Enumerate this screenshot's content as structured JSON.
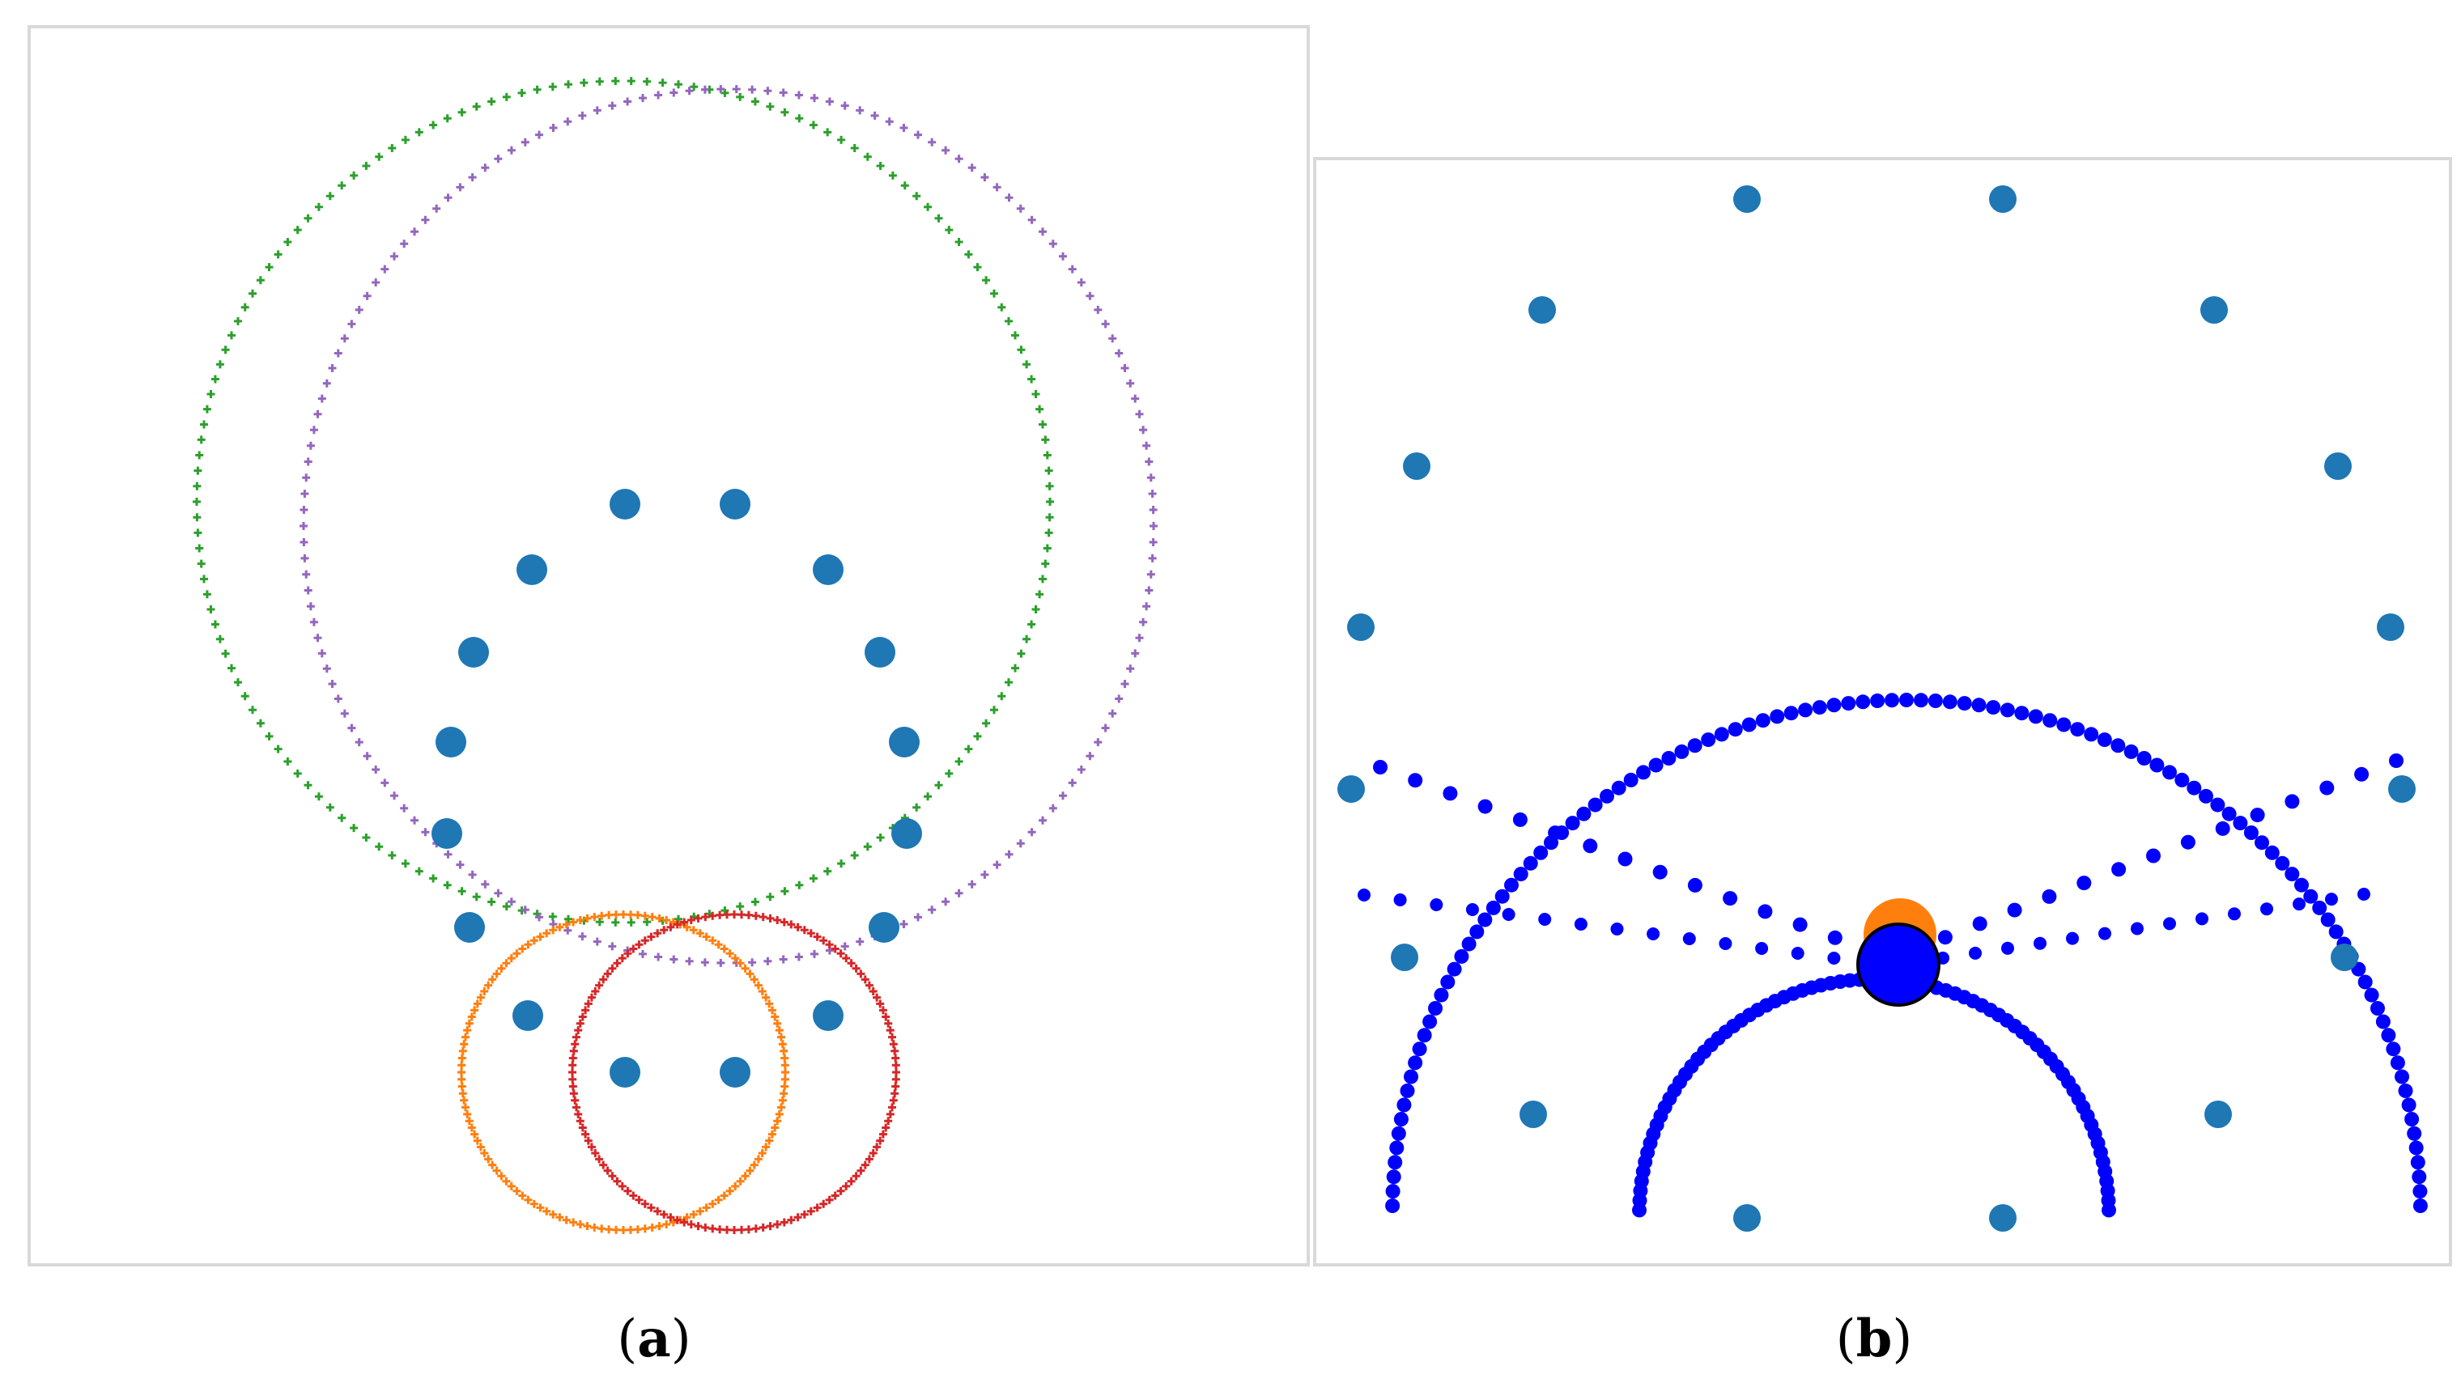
{
  "panels": {
    "a": {
      "caption_open": "(",
      "caption_letter": "a",
      "caption_close": ")"
    },
    "b": {
      "caption_open": "(",
      "caption_letter": "b",
      "caption_close": ")"
    }
  },
  "colors": {
    "sensor_dots": "#1f77b4",
    "circle_green": "#2ca02c",
    "circle_purple": "#9467bd",
    "circle_orange": "#ff7f0e",
    "circle_red": "#d62728",
    "wave_blue": "#0000ff",
    "source_orange": "#ff7f0e",
    "source_blue": "#0000ff"
  }
}
